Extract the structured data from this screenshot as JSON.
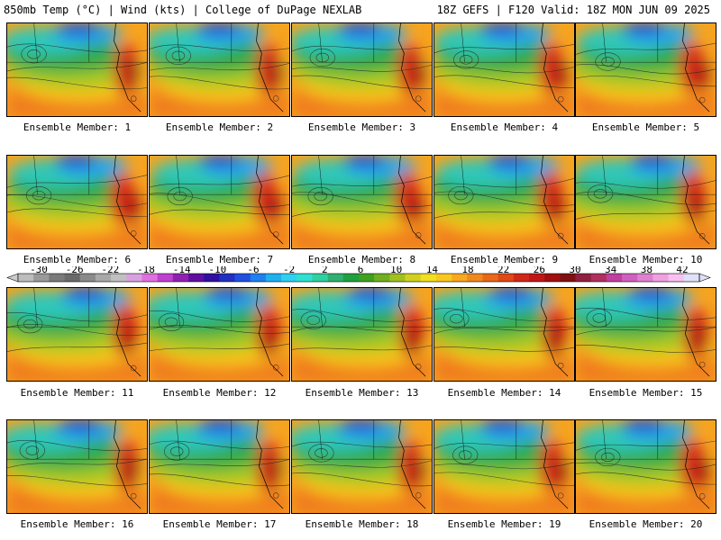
{
  "header": {
    "left": "850mb Temp (°C) | Wind (kts) | College of DuPage NEXLAB",
    "right": "18Z GEFS | F120 Valid: 18Z MON JUN 09 2025"
  },
  "panels": [
    {
      "label": "Ensemble Member: 1"
    },
    {
      "label": "Ensemble Member: 2"
    },
    {
      "label": "Ensemble Member: 3"
    },
    {
      "label": "Ensemble Member: 4"
    },
    {
      "label": "Ensemble Member: 5"
    },
    {
      "label": "Ensemble Member: 6"
    },
    {
      "label": "Ensemble Member: 7"
    },
    {
      "label": "Ensemble Member: 8"
    },
    {
      "label": "Ensemble Member: 9"
    },
    {
      "label": "Ensemble Member: 10"
    },
    {
      "label": "Ensemble Member: 11"
    },
    {
      "label": "Ensemble Member: 12"
    },
    {
      "label": "Ensemble Member: 13"
    },
    {
      "label": "Ensemble Member: 14"
    },
    {
      "label": "Ensemble Member: 15"
    },
    {
      "label": "Ensemble Member: 16"
    },
    {
      "label": "Ensemble Member: 17"
    },
    {
      "label": "Ensemble Member: 18"
    },
    {
      "label": "Ensemble Member: 19"
    },
    {
      "label": "Ensemble Member: 20"
    }
  ],
  "colorbar": {
    "tick_labels": [
      "-30",
      "-26",
      "-22",
      "-18",
      "-14",
      "-10",
      "-6",
      "-2",
      "2",
      "6",
      "10",
      "14",
      "18",
      "22",
      "26",
      "30",
      "34",
      "38",
      "42"
    ],
    "colors": [
      "#bdbdbd",
      "#9a9a9a",
      "#7a7a7a",
      "#6a6a6a",
      "#8a8a8a",
      "#a8a8a8",
      "#c0c0c0",
      "#d9a0e0",
      "#e070e0",
      "#c040d0",
      "#9020b0",
      "#6010a0",
      "#3010a0",
      "#2030c0",
      "#2050e0",
      "#2080f0",
      "#20b0f0",
      "#30d0f0",
      "#30e0d0",
      "#30d0a0",
      "#30b070",
      "#20a040",
      "#40a020",
      "#70b020",
      "#a0c020",
      "#d0d020",
      "#f0e020",
      "#f8c820",
      "#f8a820",
      "#f08820",
      "#e86818",
      "#e04818",
      "#d02818",
      "#c01818",
      "#a01010",
      "#801010",
      "#902040",
      "#b03060",
      "#c040a0",
      "#d060c0",
      "#e080d0",
      "#f0a0e0",
      "#f8c0f0",
      "#e0e0f8"
    ]
  }
}
